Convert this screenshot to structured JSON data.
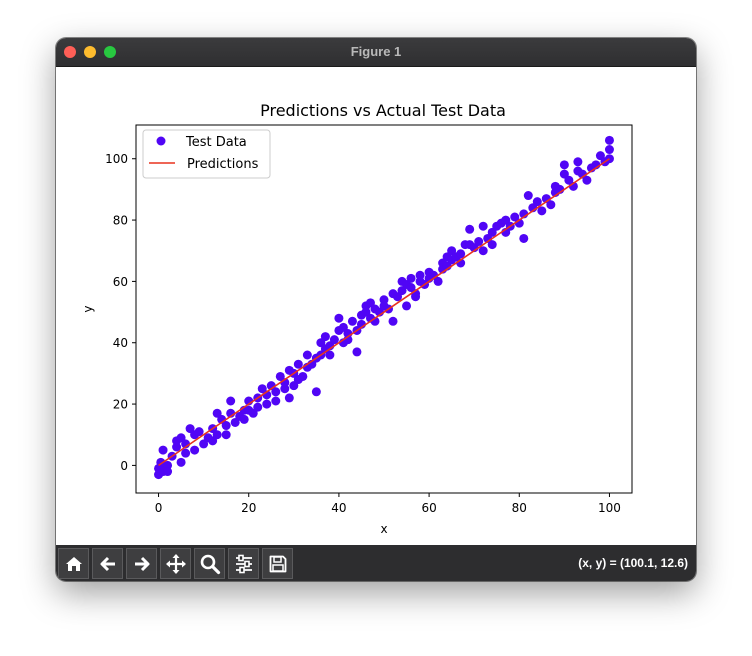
{
  "window": {
    "title": "Figure 1"
  },
  "status": {
    "coordinates": "(x, y) = (100.1, 12.6)"
  },
  "toolbar": {
    "buttons": [
      {
        "name": "home",
        "icon": "home-icon"
      },
      {
        "name": "back",
        "icon": "arrow-left-icon"
      },
      {
        "name": "forward",
        "icon": "arrow-right-icon"
      },
      {
        "name": "pan",
        "icon": "move-icon"
      },
      {
        "name": "zoom",
        "icon": "magnifier-icon"
      },
      {
        "name": "configure",
        "icon": "sliders-icon"
      },
      {
        "name": "save",
        "icon": "floppy-disk-icon"
      }
    ]
  },
  "colors": {
    "scatter": "#5005f5",
    "line": "#e8321e",
    "toolbar": "#2d2d2f"
  },
  "chart_data": {
    "type": "scatter",
    "title": "Predictions vs Actual Test Data",
    "xlabel": "x",
    "ylabel": "y",
    "xlim": [
      -5,
      105
    ],
    "ylim": [
      -9,
      111
    ],
    "xticks": [
      0,
      20,
      40,
      60,
      80,
      100
    ],
    "yticks": [
      0,
      20,
      40,
      60,
      80,
      100
    ],
    "legend": {
      "position": "top-left",
      "entries": [
        "Test Data",
        "Predictions"
      ]
    },
    "series": [
      {
        "name": "Test Data",
        "kind": "scatter",
        "points": [
          [
            0,
            -3
          ],
          [
            0,
            -1
          ],
          [
            0.5,
            1
          ],
          [
            1,
            -2
          ],
          [
            1,
            5
          ],
          [
            1.5,
            -1
          ],
          [
            2,
            0
          ],
          [
            2,
            -2
          ],
          [
            3,
            3
          ],
          [
            4,
            6
          ],
          [
            4,
            8
          ],
          [
            5,
            1
          ],
          [
            5,
            9
          ],
          [
            6,
            4
          ],
          [
            6,
            7
          ],
          [
            7,
            12
          ],
          [
            8,
            10
          ],
          [
            8,
            5
          ],
          [
            9,
            11
          ],
          [
            10,
            7
          ],
          [
            11,
            9
          ],
          [
            12,
            8
          ],
          [
            12,
            12
          ],
          [
            13,
            17
          ],
          [
            13,
            10
          ],
          [
            14,
            15
          ],
          [
            15,
            13
          ],
          [
            15,
            10
          ],
          [
            16,
            21
          ],
          [
            16,
            17
          ],
          [
            17,
            14
          ],
          [
            18,
            16
          ],
          [
            19,
            18
          ],
          [
            19,
            15
          ],
          [
            20,
            21
          ],
          [
            20,
            18
          ],
          [
            21,
            17
          ],
          [
            22,
            22
          ],
          [
            22,
            19
          ],
          [
            23,
            25
          ],
          [
            24,
            20
          ],
          [
            24,
            23
          ],
          [
            25,
            26
          ],
          [
            26,
            24
          ],
          [
            26,
            21
          ],
          [
            27,
            29
          ],
          [
            28,
            25
          ],
          [
            28,
            27
          ],
          [
            29,
            31
          ],
          [
            29,
            22
          ],
          [
            30,
            26
          ],
          [
            30,
            30
          ],
          [
            31,
            33
          ],
          [
            31,
            28
          ],
          [
            32,
            29
          ],
          [
            33,
            32
          ],
          [
            33,
            36
          ],
          [
            34,
            33
          ],
          [
            35,
            35
          ],
          [
            35,
            24
          ],
          [
            36,
            36
          ],
          [
            36,
            40
          ],
          [
            37,
            38
          ],
          [
            37,
            42
          ],
          [
            38,
            39
          ],
          [
            38,
            36
          ],
          [
            39,
            41
          ],
          [
            40,
            44
          ],
          [
            40,
            48
          ],
          [
            41,
            45
          ],
          [
            41,
            40
          ],
          [
            42,
            43
          ],
          [
            42,
            41
          ],
          [
            43,
            47
          ],
          [
            44,
            44
          ],
          [
            44,
            37
          ],
          [
            45,
            49
          ],
          [
            45,
            46
          ],
          [
            46,
            50
          ],
          [
            46,
            52
          ],
          [
            47,
            48
          ],
          [
            47,
            53
          ],
          [
            48,
            51
          ],
          [
            48,
            47
          ],
          [
            49,
            50
          ],
          [
            50,
            54
          ],
          [
            50,
            52
          ],
          [
            51,
            51
          ],
          [
            52,
            56
          ],
          [
            52,
            47
          ],
          [
            53,
            55
          ],
          [
            54,
            60
          ],
          [
            54,
            57
          ],
          [
            55,
            59
          ],
          [
            55,
            52
          ],
          [
            56,
            58
          ],
          [
            56,
            61
          ],
          [
            57,
            56
          ],
          [
            57,
            55
          ],
          [
            58,
            60
          ],
          [
            58,
            62
          ],
          [
            59,
            59
          ],
          [
            60,
            63
          ],
          [
            60,
            61
          ],
          [
            61,
            62
          ],
          [
            62,
            60
          ],
          [
            63,
            64
          ],
          [
            63,
            66
          ],
          [
            64,
            65
          ],
          [
            64,
            68
          ],
          [
            65,
            70
          ],
          [
            65,
            67
          ],
          [
            66,
            68
          ],
          [
            67,
            69
          ],
          [
            67,
            66
          ],
          [
            68,
            72
          ],
          [
            69,
            72
          ],
          [
            69,
            77
          ],
          [
            70,
            71
          ],
          [
            71,
            73
          ],
          [
            72,
            70
          ],
          [
            72,
            78
          ],
          [
            73,
            74
          ],
          [
            74,
            76
          ],
          [
            74,
            72
          ],
          [
            75,
            78
          ],
          [
            76,
            79
          ],
          [
            77,
            80
          ],
          [
            77,
            76
          ],
          [
            78,
            78
          ],
          [
            79,
            81
          ],
          [
            80,
            79
          ],
          [
            81,
            82
          ],
          [
            81,
            74
          ],
          [
            82,
            88
          ],
          [
            83,
            84
          ],
          [
            84,
            86
          ],
          [
            85,
            83
          ],
          [
            86,
            87
          ],
          [
            87,
            85
          ],
          [
            88,
            89
          ],
          [
            88,
            91
          ],
          [
            89,
            90
          ],
          [
            90,
            95
          ],
          [
            90,
            98
          ],
          [
            91,
            93
          ],
          [
            92,
            91
          ],
          [
            93,
            99
          ],
          [
            93,
            96
          ],
          [
            94,
            95
          ],
          [
            95,
            93
          ],
          [
            96,
            97
          ],
          [
            97,
            98
          ],
          [
            98,
            101
          ],
          [
            99,
            99
          ],
          [
            100,
            103
          ],
          [
            100,
            106
          ],
          [
            100,
            100
          ]
        ]
      },
      {
        "name": "Predictions",
        "kind": "line",
        "points": [
          [
            0,
            0
          ],
          [
            100,
            100
          ]
        ]
      }
    ]
  }
}
